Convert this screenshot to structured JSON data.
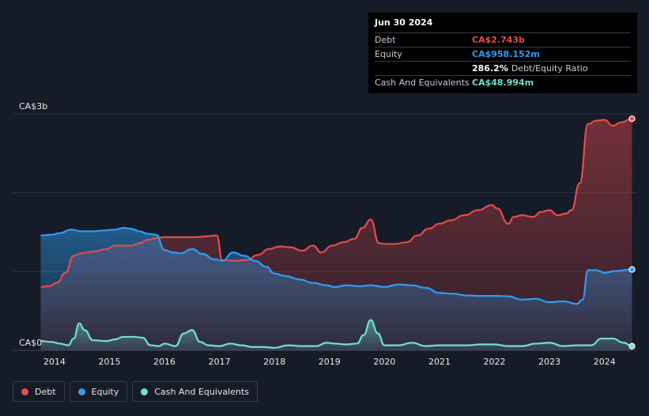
{
  "tooltip": {
    "date": "Jun 30 2024",
    "rows": [
      {
        "label": "Debt",
        "value": "CA$2.743b",
        "color": "#e64a4f",
        "extra": ""
      },
      {
        "label": "Equity",
        "value": "CA$958.152m",
        "color": "#2f9cf0",
        "extra": ""
      },
      {
        "label": "",
        "value": "286.2%",
        "color": "#ffffff",
        "extra": "Debt/Equity Ratio"
      },
      {
        "label": "Cash And Equivalents",
        "value": "CA$48.994m",
        "color": "#6fe0cf",
        "extra": ""
      }
    ]
  },
  "legend": [
    {
      "label": "Debt",
      "color": "#e64a4f"
    },
    {
      "label": "Equity",
      "color": "#2f9cf0"
    },
    {
      "label": "Cash And Equivalents",
      "color": "#6fe0cf"
    }
  ],
  "chart_data": {
    "type": "area",
    "title": "",
    "xlabel": "",
    "ylabel": "",
    "ylim": [
      0,
      2.8
    ],
    "ytick_labels": [
      {
        "value": 2.8,
        "label": "CA$3b"
      },
      {
        "value": 0,
        "label": "CA$0"
      }
    ],
    "xticks": [
      2014,
      2015,
      2016,
      2017,
      2018,
      2019,
      2020,
      2021,
      2022,
      2023,
      2024
    ],
    "xlim": [
      2013.7,
      2024.55
    ],
    "units": "CA$ billions",
    "series": [
      {
        "name": "Debt",
        "color": "#e64a4f",
        "x": [
          2013.75,
          2013.9,
          2014.05,
          2014.2,
          2014.35,
          2014.5,
          2014.7,
          2014.95,
          2015.1,
          2015.25,
          2015.4,
          2015.55,
          2015.7,
          2015.85,
          2016.0,
          2016.2,
          2016.4,
          2016.55,
          2016.75,
          2016.95,
          2017.05,
          2017.25,
          2017.5,
          2017.7,
          2017.9,
          2018.1,
          2018.3,
          2018.5,
          2018.7,
          2018.85,
          2019.05,
          2019.25,
          2019.45,
          2019.6,
          2019.75,
          2019.9,
          2020.0,
          2020.2,
          2020.4,
          2020.6,
          2020.8,
          2021.0,
          2021.2,
          2021.45,
          2021.7,
          2021.95,
          2022.05,
          2022.25,
          2022.35,
          2022.5,
          2022.7,
          2022.85,
          2023.0,
          2023.15,
          2023.3,
          2023.4,
          2023.55,
          2023.7,
          2023.85,
          2024.0,
          2024.15,
          2024.3,
          2024.5
        ],
        "values": [
          0.75,
          0.76,
          0.8,
          0.92,
          1.12,
          1.15,
          1.17,
          1.2,
          1.24,
          1.24,
          1.24,
          1.27,
          1.31,
          1.33,
          1.34,
          1.34,
          1.34,
          1.34,
          1.35,
          1.36,
          1.07,
          1.06,
          1.07,
          1.13,
          1.2,
          1.23,
          1.22,
          1.18,
          1.24,
          1.16,
          1.24,
          1.28,
          1.32,
          1.45,
          1.55,
          1.27,
          1.26,
          1.26,
          1.28,
          1.36,
          1.44,
          1.5,
          1.54,
          1.6,
          1.66,
          1.72,
          1.68,
          1.5,
          1.58,
          1.6,
          1.58,
          1.64,
          1.66,
          1.6,
          1.62,
          1.66,
          1.98,
          2.68,
          2.72,
          2.73,
          2.66,
          2.7,
          2.743
        ]
      },
      {
        "name": "Equity",
        "color": "#2f9cf0",
        "x": [
          2013.75,
          2013.95,
          2014.1,
          2014.3,
          2014.5,
          2014.7,
          2014.9,
          2015.1,
          2015.25,
          2015.4,
          2015.55,
          2015.7,
          2015.85,
          2016.0,
          2016.15,
          2016.3,
          2016.5,
          2016.7,
          2016.9,
          2017.05,
          2017.25,
          2017.45,
          2017.65,
          2017.85,
          2018.0,
          2018.2,
          2018.45,
          2018.7,
          2018.95,
          2019.1,
          2019.3,
          2019.55,
          2019.75,
          2020.0,
          2020.25,
          2020.5,
          2020.75,
          2021.0,
          2021.25,
          2021.5,
          2021.75,
          2022.0,
          2022.25,
          2022.5,
          2022.75,
          2023.0,
          2023.25,
          2023.5,
          2023.6,
          2023.7,
          2023.85,
          2024.0,
          2024.2,
          2024.5
        ],
        "values": [
          1.36,
          1.37,
          1.39,
          1.43,
          1.41,
          1.41,
          1.42,
          1.43,
          1.45,
          1.44,
          1.41,
          1.38,
          1.37,
          1.19,
          1.16,
          1.15,
          1.2,
          1.14,
          1.08,
          1.06,
          1.16,
          1.12,
          1.06,
          0.99,
          0.91,
          0.88,
          0.84,
          0.8,
          0.77,
          0.75,
          0.77,
          0.76,
          0.77,
          0.75,
          0.78,
          0.77,
          0.74,
          0.68,
          0.67,
          0.65,
          0.645,
          0.645,
          0.64,
          0.6,
          0.61,
          0.57,
          0.58,
          0.55,
          0.6,
          0.95,
          0.95,
          0.92,
          0.94,
          0.958
        ]
      },
      {
        "name": "Cash And Equivalents",
        "color": "#6fe0cf",
        "x": [
          2013.75,
          2013.95,
          2014.1,
          2014.25,
          2014.35,
          2014.45,
          2014.55,
          2014.7,
          2014.95,
          2015.1,
          2015.25,
          2015.45,
          2015.6,
          2015.75,
          2015.9,
          2016.0,
          2016.2,
          2016.35,
          2016.5,
          2016.65,
          2016.8,
          2017.0,
          2017.2,
          2017.4,
          2017.6,
          2017.8,
          2018.0,
          2018.25,
          2018.5,
          2018.75,
          2018.95,
          2019.1,
          2019.3,
          2019.5,
          2019.62,
          2019.75,
          2019.88,
          2020.0,
          2020.25,
          2020.5,
          2020.75,
          2021.0,
          2021.25,
          2021.5,
          2021.75,
          2022.0,
          2022.25,
          2022.5,
          2022.75,
          2023.0,
          2023.25,
          2023.5,
          2023.75,
          2023.95,
          2024.15,
          2024.35,
          2024.5
        ],
        "values": [
          0.11,
          0.1,
          0.08,
          0.06,
          0.14,
          0.32,
          0.24,
          0.12,
          0.11,
          0.13,
          0.16,
          0.16,
          0.15,
          0.06,
          0.05,
          0.08,
          0.05,
          0.2,
          0.24,
          0.1,
          0.06,
          0.05,
          0.08,
          0.06,
          0.04,
          0.04,
          0.03,
          0.06,
          0.05,
          0.05,
          0.09,
          0.08,
          0.07,
          0.08,
          0.18,
          0.36,
          0.2,
          0.06,
          0.06,
          0.09,
          0.05,
          0.06,
          0.06,
          0.06,
          0.07,
          0.07,
          0.05,
          0.05,
          0.08,
          0.09,
          0.05,
          0.06,
          0.06,
          0.14,
          0.14,
          0.09,
          0.049
        ]
      }
    ]
  }
}
